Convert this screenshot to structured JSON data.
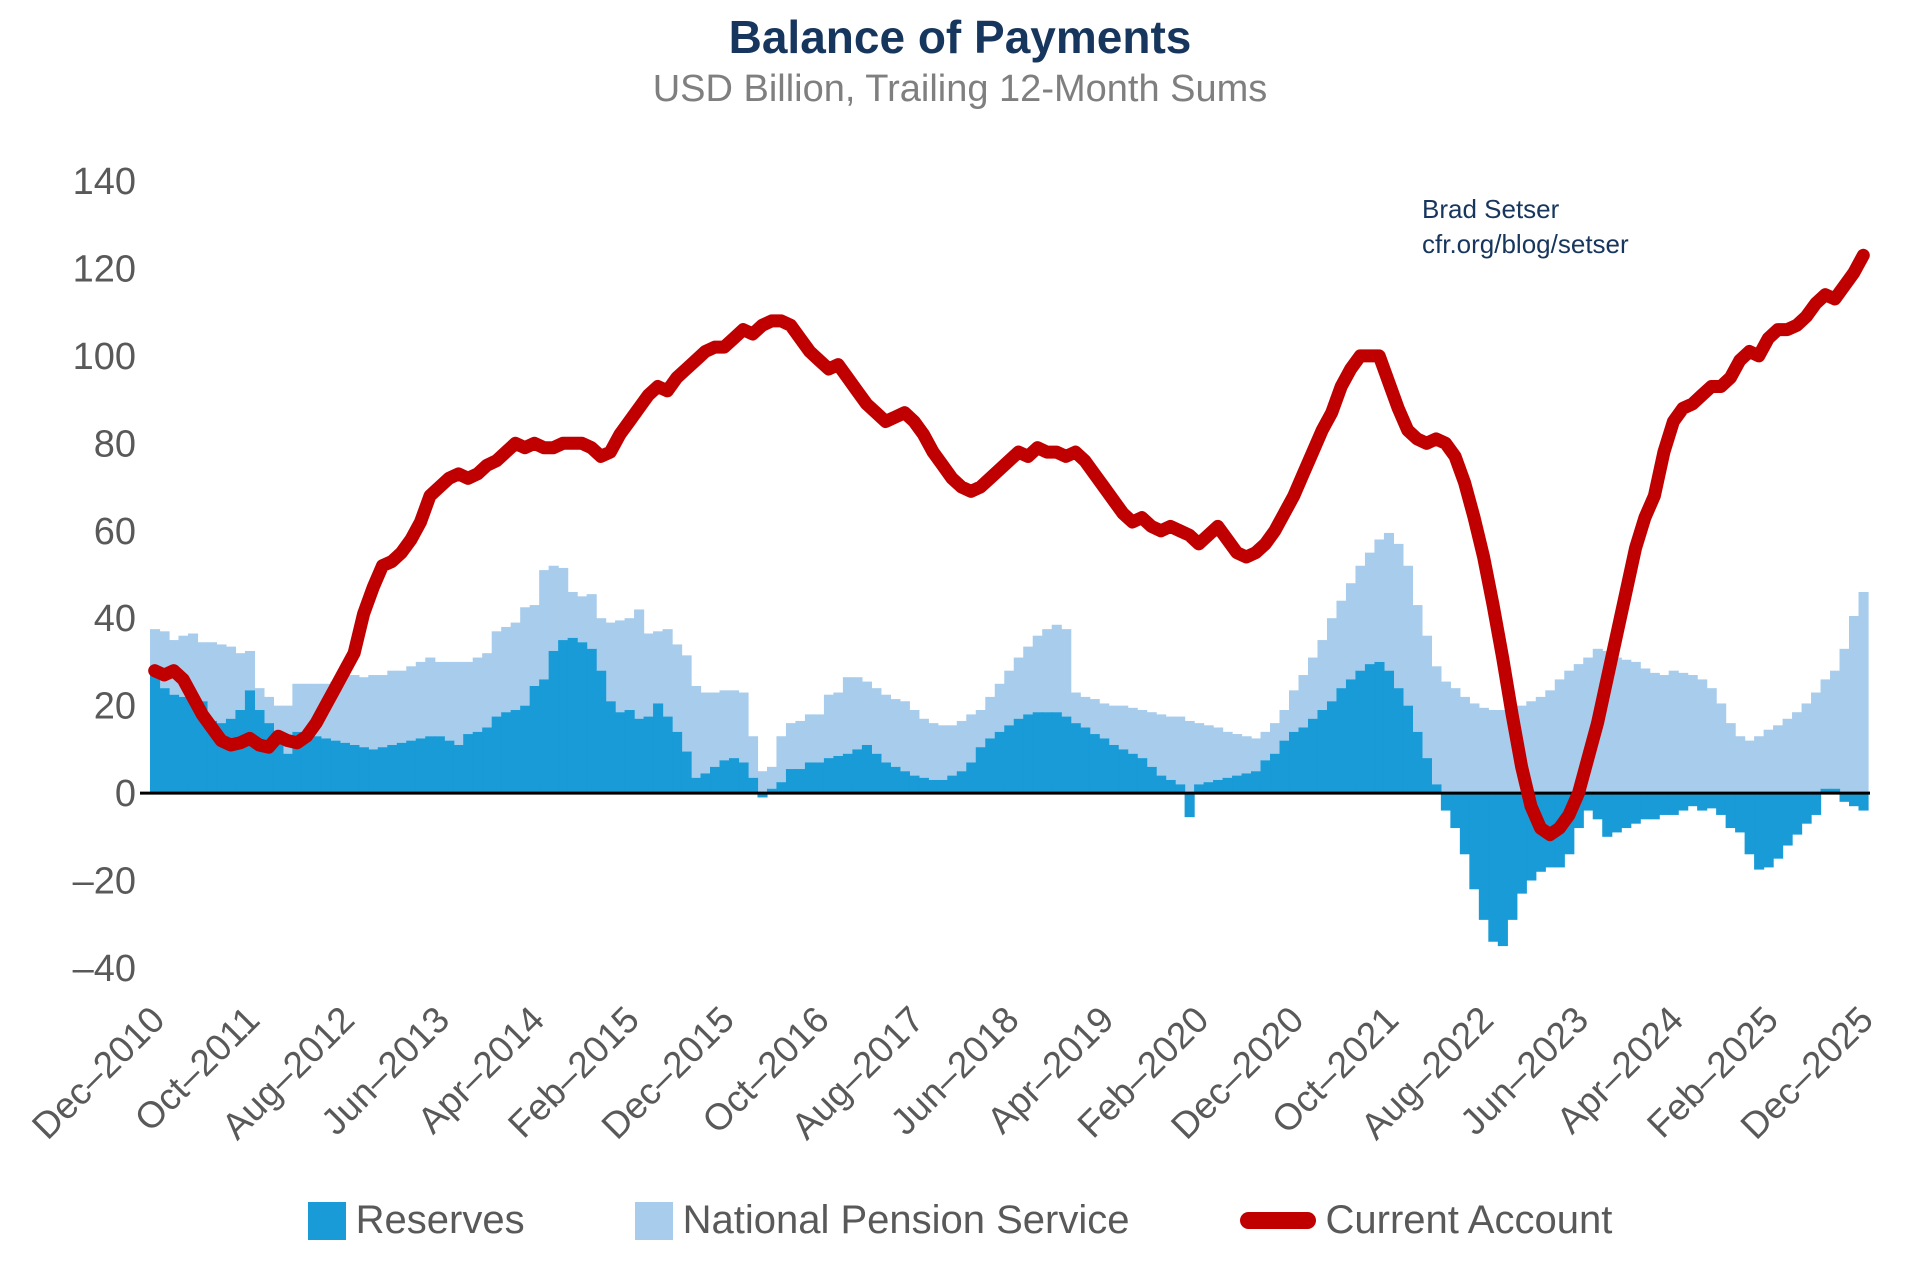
{
  "title": "Balance of Payments",
  "subtitle": "USD Billion, Trailing 12-Month Sums",
  "annotation": {
    "line1": "Brad Setser",
    "line2": "cfr.org/blog/setser"
  },
  "colors": {
    "reserves": "#189BD7",
    "nps": "#A8CCEB",
    "current_account": "#C00000",
    "title": "#17365D",
    "subtitle_gray": "#7F7F7F",
    "axis_gray": "#595959",
    "zero_line": "#000000"
  },
  "legend": [
    {
      "label": "Reserves",
      "swatch": "square",
      "color": "#189BD7"
    },
    {
      "label": "National Pension Service",
      "swatch": "square",
      "color": "#A8CCEB"
    },
    {
      "label": "Current Account",
      "swatch": "line",
      "color": "#C00000"
    }
  ],
  "chart_data": {
    "type": "bar",
    "subtype": "stacked-bars-with-line",
    "months_start": "Dec-2010",
    "months_end": "Dec-2025",
    "n_months": 181,
    "ylim": [
      -40,
      140
    ],
    "y_ticks": [
      140,
      120,
      100,
      80,
      60,
      40,
      20,
      0,
      -20,
      -40
    ],
    "grid": "off",
    "legend_position": "bottom",
    "x_tick_every_months": 10,
    "x_tick_labels": [
      "Dec-2010",
      "Oct-2011",
      "Aug-2012",
      "Jun-2013",
      "Apr-2014",
      "Feb-2015",
      "Dec-2015",
      "Oct-2016",
      "Aug-2017",
      "Jun-2018",
      "Apr-2019",
      "Feb-2020",
      "Dec-2020",
      "Oct-2021",
      "Aug-2022",
      "Jun-2023",
      "Apr-2024",
      "Feb-2025",
      "Dec-2025"
    ],
    "series": [
      {
        "name": "Reserves",
        "type": "bar",
        "stack": "bop",
        "color": "#189BD7",
        "values": [
          27,
          24,
          22.5,
          22,
          22.5,
          21,
          16.5,
          16,
          17,
          19,
          23.5,
          19,
          16,
          14,
          9,
          14,
          13.5,
          13,
          12.5,
          12,
          11.5,
          11,
          10.5,
          10,
          10.5,
          11,
          11.5,
          12,
          12.5,
          13,
          13,
          12,
          11,
          13.5,
          14,
          15,
          17.5,
          18.5,
          19,
          20,
          24.5,
          26,
          32.5,
          35,
          35.5,
          34.5,
          33,
          28,
          21,
          18.5,
          19,
          17,
          17.5,
          20.5,
          17.5,
          14,
          9.5,
          3.5,
          4.5,
          6,
          7.5,
          8,
          7,
          3.5,
          -1,
          1,
          2.5,
          5.5,
          5.5,
          7,
          7,
          8,
          8.5,
          9,
          10,
          11,
          9,
          7,
          6,
          5,
          4,
          3.5,
          3,
          3,
          4,
          5,
          7,
          10.5,
          12.5,
          14,
          15.5,
          17,
          18,
          18.5,
          18.5,
          18.5,
          17.5,
          16,
          15,
          13.5,
          12.5,
          11,
          10,
          9,
          8,
          6,
          4,
          3,
          2,
          -5.5,
          2,
          2.5,
          3,
          3.5,
          4,
          4.5,
          5,
          7.5,
          9,
          12,
          14,
          15,
          17,
          19,
          21,
          24,
          26,
          28,
          29.5,
          30,
          28,
          24,
          20,
          14,
          8,
          2,
          -4,
          -8,
          -14,
          -22,
          -29,
          -34,
          -35,
          -29,
          -23,
          -20,
          -18,
          -17,
          -17,
          -14,
          -8,
          -4,
          -6,
          -10,
          -9,
          -8,
          -7,
          -6,
          -6,
          -5,
          -5,
          -4,
          -3,
          -4,
          -3.5,
          -5,
          -8,
          -9,
          -14,
          -17.5,
          -17,
          -15,
          -12,
          -9.5,
          -7,
          -5,
          1,
          1,
          -2,
          -3,
          -4
        ]
      },
      {
        "name": "National Pension Service",
        "type": "bar",
        "stack": "bop",
        "color": "#A8CCEB",
        "values": [
          10.5,
          13,
          12.5,
          14,
          14,
          13.5,
          18,
          18,
          16.5,
          13,
          9,
          5,
          6,
          6,
          11,
          11,
          11.5,
          12,
          12.5,
          13.5,
          17,
          16,
          16,
          17,
          16.5,
          17,
          16.5,
          17,
          17.5,
          18,
          17,
          18,
          19,
          16.5,
          17,
          17,
          19.5,
          19.5,
          20,
          22.5,
          18.5,
          25,
          19.5,
          16.5,
          10.5,
          10.5,
          12.5,
          12,
          18,
          21,
          21,
          25,
          19,
          16.5,
          20,
          20,
          22,
          21,
          18.5,
          17,
          16,
          15.5,
          16,
          9.5,
          5,
          5,
          10.5,
          10.5,
          11,
          11,
          11,
          14.5,
          14.5,
          17.5,
          16.5,
          14.5,
          15,
          15.5,
          15.5,
          16,
          15,
          13.5,
          13,
          12.5,
          11.5,
          11.5,
          11,
          8.5,
          9.5,
          11,
          12.5,
          14,
          15.5,
          17.5,
          19,
          20,
          20,
          7,
          7,
          8,
          8,
          9,
          10,
          10.5,
          11,
          12.5,
          14,
          14.5,
          15.5,
          16.5,
          14,
          13,
          12,
          10.5,
          9.5,
          8.5,
          7.5,
          6.5,
          7,
          7,
          9.5,
          12,
          14,
          16,
          19,
          20,
          22,
          24,
          25.5,
          28,
          31.5,
          33,
          32,
          29,
          28,
          27,
          25.5,
          24,
          22,
          20.5,
          19.5,
          19,
          19,
          19.5,
          20,
          21,
          22,
          23.5,
          26,
          28,
          29.5,
          31,
          33,
          32.5,
          31,
          30.5,
          30,
          28.5,
          27.5,
          27,
          28,
          27.5,
          27,
          26,
          24,
          20.5,
          16,
          13,
          12,
          13,
          14.5,
          15.5,
          17,
          18.5,
          20.5,
          23,
          25,
          27,
          33,
          40.5,
          46
        ]
      },
      {
        "name": "Current Account",
        "type": "line",
        "color": "#C00000",
        "stroke_width": 13,
        "values": [
          28,
          27,
          28,
          26,
          22,
          18,
          15,
          12,
          11,
          11.5,
          12.5,
          11,
          10.5,
          13,
          12,
          11.5,
          13,
          16,
          20,
          24,
          28,
          32,
          41,
          47,
          52,
          53,
          55,
          58,
          62,
          68,
          70,
          72,
          73,
          72,
          73,
          75,
          76,
          78,
          80,
          79,
          80,
          79,
          79,
          80,
          80,
          80,
          79,
          77,
          78,
          82,
          85,
          88,
          91,
          93,
          92,
          95,
          97,
          99,
          101,
          102,
          102,
          104,
          106,
          105,
          107,
          108,
          108,
          107,
          104,
          101,
          99,
          97,
          98,
          95,
          92,
          89,
          87,
          85,
          86,
          87,
          85,
          82,
          78,
          75,
          72,
          70,
          69,
          70,
          72,
          74,
          76,
          78,
          77,
          79,
          78,
          78,
          77,
          78,
          76,
          73,
          70,
          67,
          64,
          62,
          63,
          61,
          60,
          61,
          60,
          59,
          57,
          59,
          61,
          58,
          55,
          54,
          55,
          57,
          60,
          64,
          68,
          73,
          78,
          83,
          87,
          93,
          97,
          100,
          100,
          100,
          94,
          88,
          83,
          81,
          80,
          81,
          80,
          77,
          71,
          63,
          54,
          43,
          31,
          18,
          6,
          -3,
          -8,
          -9.5,
          -8,
          -5,
          0,
          8,
          16,
          26,
          36,
          46,
          56,
          63,
          68,
          78,
          85,
          88,
          89,
          91,
          93,
          93,
          95,
          99,
          101,
          100,
          104,
          106,
          106,
          107,
          109,
          112,
          114,
          113,
          116,
          119,
          123
        ]
      }
    ]
  }
}
